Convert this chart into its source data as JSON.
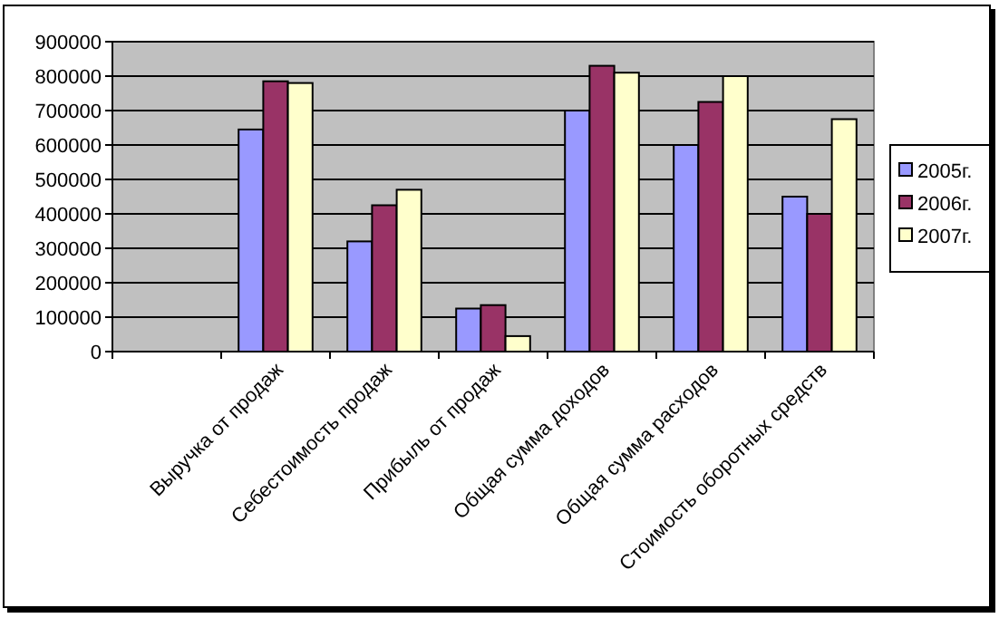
{
  "chart_data": {
    "type": "bar",
    "categories": [
      null,
      "Выручка от продаж",
      "Себестоимость продаж",
      "Прибыль от продаж",
      "Общая сумма доходов",
      "Общая сумма расходов",
      "Стоимость оборотных средств"
    ],
    "series": [
      {
        "name": "2005г.",
        "color": "#9999ff",
        "values": [
          null,
          645000,
          320000,
          125000,
          700000,
          600000,
          450000
        ]
      },
      {
        "name": "2006г.",
        "color": "#993366",
        "values": [
          null,
          785000,
          425000,
          135000,
          830000,
          725000,
          400000
        ]
      },
      {
        "name": "2007г.",
        "color": "#ffffcc",
        "values": [
          null,
          780000,
          470000,
          45000,
          810000,
          800000,
          675000
        ]
      }
    ],
    "ylim": [
      0,
      900000
    ],
    "yticks": [
      0,
      100000,
      200000,
      300000,
      400000,
      500000,
      600000,
      700000,
      800000,
      900000
    ],
    "grid": "y",
    "legend": "right"
  }
}
